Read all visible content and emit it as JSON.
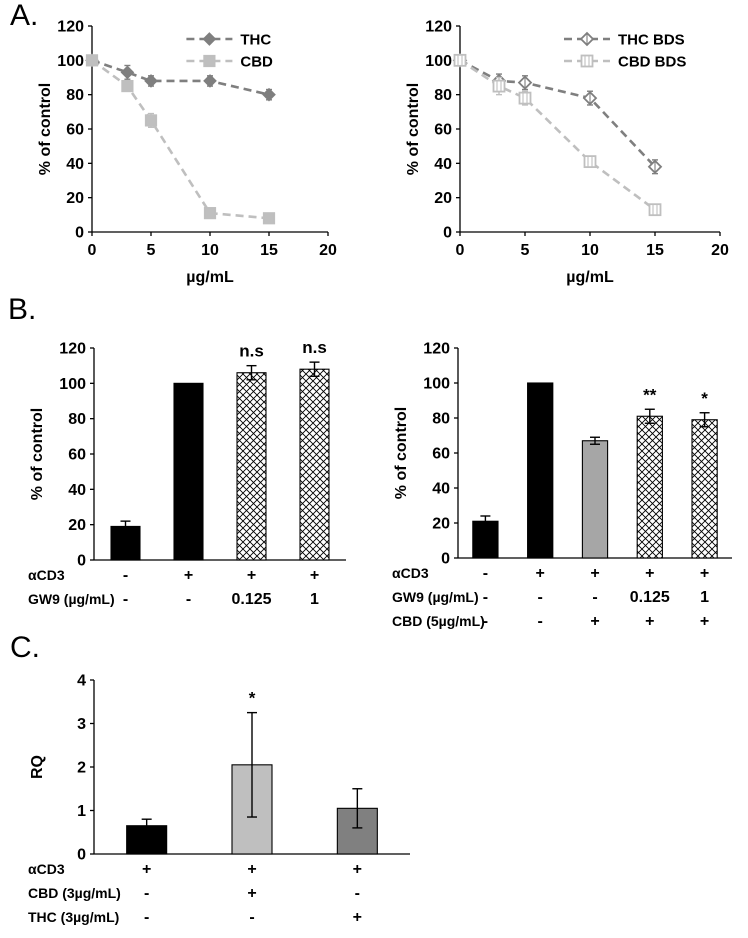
{
  "panels": [
    {
      "id": "A",
      "label": "A."
    },
    {
      "id": "B",
      "label": "B."
    },
    {
      "id": "C",
      "label": "C."
    }
  ],
  "colors": {
    "axis": "#000000",
    "text": "#000000",
    "thc_dark_gray": "#7f7f7f",
    "cbd_light_gray": "#bfbfbf",
    "bar_black": "#000000",
    "bar_mid_gray": "#a6a6a6",
    "bar_light_gray": "#bfbfbf",
    "bar_dark_gray": "#808080",
    "hatch_line": "#000000"
  },
  "chart_data": [
    {
      "id": "chart-a-left",
      "panel": "A",
      "type": "line",
      "xlabel": "µg/mL",
      "ylabel": "% of control",
      "xlim": [
        0,
        20
      ],
      "ylim": [
        0,
        120
      ],
      "xticks": [
        0,
        5,
        10,
        15,
        20
      ],
      "yticks": [
        0,
        20,
        40,
        60,
        80,
        100,
        120
      ],
      "grid": false,
      "legend_position": "top-inside",
      "x": [
        0,
        3,
        5,
        10,
        15
      ],
      "series": [
        {
          "name": "THC",
          "marker": "diamond",
          "style": "filled",
          "color": "#7f7f7f",
          "values": [
            100,
            93,
            88,
            88,
            80
          ],
          "errors": [
            0,
            4,
            3,
            3,
            3
          ]
        },
        {
          "name": "CBD",
          "marker": "square",
          "style": "filled",
          "color": "#bfbfbf",
          "values": [
            100,
            85,
            65,
            11,
            8
          ],
          "errors": [
            0,
            3,
            4,
            2,
            2
          ]
        }
      ]
    },
    {
      "id": "chart-a-right",
      "panel": "A",
      "type": "line",
      "xlabel": "µg/mL",
      "ylabel": "% of control",
      "xlim": [
        0,
        20
      ],
      "ylim": [
        0,
        120
      ],
      "xticks": [
        0,
        5,
        10,
        15,
        20
      ],
      "yticks": [
        0,
        20,
        40,
        60,
        80,
        100,
        120
      ],
      "grid": false,
      "legend_position": "top-inside",
      "x": [
        0,
        3,
        5,
        10,
        15
      ],
      "series": [
        {
          "name": "THC BDS",
          "marker": "diamond",
          "style": "open",
          "color": "#7f7f7f",
          "values": [
            100,
            88,
            87,
            78,
            38
          ],
          "errors": [
            2,
            4,
            4,
            4,
            4
          ]
        },
        {
          "name": "CBD BDS",
          "marker": "square",
          "style": "open",
          "color": "#bfbfbf",
          "values": [
            100,
            85,
            78,
            41,
            13
          ],
          "errors": [
            2,
            5,
            4,
            3,
            2
          ]
        }
      ]
    },
    {
      "id": "chart-b-left",
      "panel": "B",
      "type": "bar",
      "ylabel": "% of control",
      "ylim": [
        0,
        120
      ],
      "yticks": [
        0,
        20,
        40,
        60,
        80,
        100,
        120
      ],
      "grid": false,
      "bars": [
        {
          "value": 19,
          "error": 3,
          "style": "black",
          "annotation": ""
        },
        {
          "value": 100,
          "error": 0,
          "style": "black",
          "annotation": ""
        },
        {
          "value": 106,
          "error": 4,
          "style": "hatch",
          "annotation": "n.s"
        },
        {
          "value": 108,
          "error": 4,
          "style": "hatch",
          "annotation": "n.s"
        }
      ],
      "condition_rows": [
        {
          "label": "αCD3",
          "values": [
            "-",
            "+",
            "+",
            "+"
          ]
        },
        {
          "label": "GW9 (µg/mL)",
          "values": [
            "-",
            "-",
            "0.125",
            "1"
          ]
        }
      ]
    },
    {
      "id": "chart-b-right",
      "panel": "B",
      "type": "bar",
      "ylabel": "% of control",
      "ylim": [
        0,
        120
      ],
      "yticks": [
        0,
        20,
        40,
        60,
        80,
        100,
        120
      ],
      "grid": false,
      "bars": [
        {
          "value": 21,
          "error": 3,
          "style": "black",
          "annotation": ""
        },
        {
          "value": 100,
          "error": 0,
          "style": "black",
          "annotation": ""
        },
        {
          "value": 67,
          "error": 2,
          "style": "gray",
          "annotation": ""
        },
        {
          "value": 81,
          "error": 4,
          "style": "hatch",
          "annotation": "**"
        },
        {
          "value": 79,
          "error": 4,
          "style": "hatch",
          "annotation": "*"
        }
      ],
      "condition_rows": [
        {
          "label": "αCD3",
          "values": [
            "-",
            "+",
            "+",
            "+",
            "+"
          ]
        },
        {
          "label": "GW9 (µg/mL)",
          "values": [
            "-",
            "-",
            "-",
            "0.125",
            "1"
          ]
        },
        {
          "label": "CBD (5µg/mL)",
          "values": [
            "-",
            "-",
            "+",
            "+",
            "+"
          ]
        }
      ]
    },
    {
      "id": "chart-c",
      "panel": "C",
      "type": "bar",
      "ylabel": "RQ",
      "ylim": [
        0,
        4
      ],
      "yticks": [
        0,
        1,
        2,
        3,
        4
      ],
      "grid": false,
      "bars": [
        {
          "value": 0.65,
          "error": 0.15,
          "style": "black",
          "annotation": ""
        },
        {
          "value": 2.05,
          "error": 1.2,
          "style": "lightgray",
          "annotation": "*"
        },
        {
          "value": 1.05,
          "error": 0.45,
          "style": "darkgray",
          "annotation": ""
        }
      ],
      "condition_rows": [
        {
          "label": "αCD3",
          "values": [
            "+",
            "+",
            "+"
          ]
        },
        {
          "label": "CBD (3µg/mL)",
          "values": [
            "-",
            "+",
            "-"
          ]
        },
        {
          "label": "THC (3µg/mL)",
          "values": [
            "-",
            "-",
            "+"
          ]
        }
      ]
    }
  ]
}
